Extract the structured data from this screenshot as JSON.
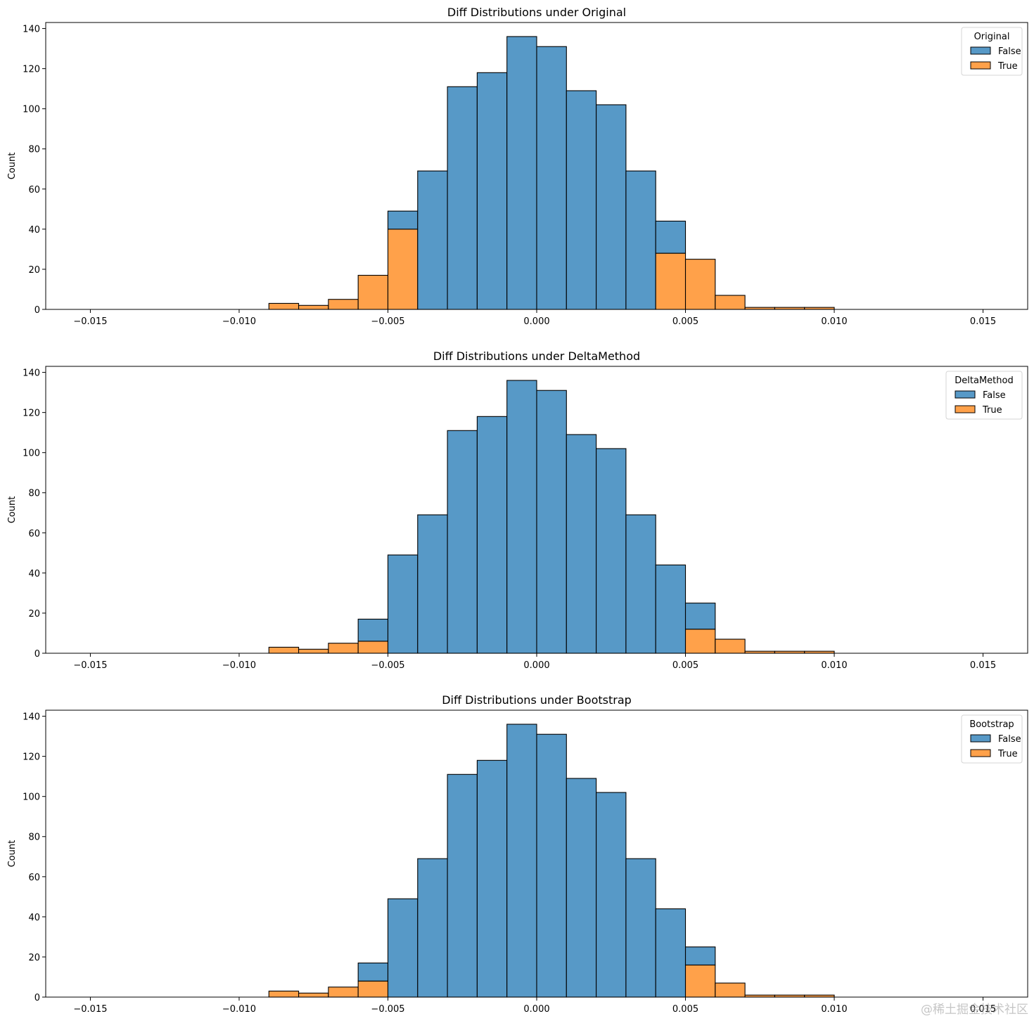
{
  "colors": {
    "false": "#5799c7",
    "true": "#ffa14a",
    "edge": "#000000"
  },
  "watermark": "@稀土掘金技术社区",
  "chart_data": [
    {
      "type": "bar",
      "stacked": true,
      "title": "Diff Distributions under Original",
      "xlabel": "",
      "ylabel": "Count",
      "xlim": [
        -0.0165,
        0.0165
      ],
      "ylim": [
        0,
        143
      ],
      "xticks": [
        -0.015,
        -0.01,
        -0.005,
        0.0,
        0.005,
        0.01,
        0.015
      ],
      "xtick_labels": [
        "−0.015",
        "−0.010",
        "−0.005",
        "0.000",
        "0.005",
        "0.010",
        "0.015"
      ],
      "yticks": [
        0,
        20,
        40,
        60,
        80,
        100,
        120,
        140
      ],
      "legend": {
        "title": "Original",
        "position": "top-right",
        "entries": [
          "False",
          "True"
        ]
      },
      "bin_edges": [
        -0.015,
        -0.014,
        -0.013,
        -0.012,
        -0.011,
        -0.01,
        -0.009,
        -0.008,
        -0.007,
        -0.006,
        -0.005,
        -0.004,
        -0.003,
        -0.002,
        -0.001,
        0.0,
        0.001,
        0.002,
        0.003,
        0.004,
        0.005,
        0.006,
        0.007,
        0.008,
        0.009,
        0.01,
        0.011,
        0.012,
        0.013,
        0.014,
        0.015
      ],
      "series": [
        {
          "name": "False",
          "values": [
            0,
            0,
            0,
            0,
            0,
            0,
            0,
            0,
            0,
            0,
            9,
            69,
            111,
            118,
            136,
            131,
            109,
            102,
            69,
            16,
            0,
            0,
            0,
            0,
            0,
            0,
            0,
            0,
            0,
            0
          ]
        },
        {
          "name": "True",
          "values": [
            0,
            0,
            0,
            0,
            0,
            0,
            3,
            2,
            5,
            17,
            40,
            0,
            0,
            0,
            0,
            0,
            0,
            0,
            0,
            28,
            25,
            7,
            1,
            1,
            1,
            0,
            0,
            0,
            0,
            0
          ]
        }
      ]
    },
    {
      "type": "bar",
      "stacked": true,
      "title": "Diff Distributions under DeltaMethod",
      "xlabel": "",
      "ylabel": "Count",
      "xlim": [
        -0.0165,
        0.0165
      ],
      "ylim": [
        0,
        143
      ],
      "xticks": [
        -0.015,
        -0.01,
        -0.005,
        0.0,
        0.005,
        0.01,
        0.015
      ],
      "xtick_labels": [
        "−0.015",
        "−0.010",
        "−0.005",
        "0.000",
        "0.005",
        "0.010",
        "0.015"
      ],
      "yticks": [
        0,
        20,
        40,
        60,
        80,
        100,
        120,
        140
      ],
      "legend": {
        "title": "DeltaMethod",
        "position": "top-right",
        "entries": [
          "False",
          "True"
        ]
      },
      "bin_edges": [
        -0.015,
        -0.014,
        -0.013,
        -0.012,
        -0.011,
        -0.01,
        -0.009,
        -0.008,
        -0.007,
        -0.006,
        -0.005,
        -0.004,
        -0.003,
        -0.002,
        -0.001,
        0.0,
        0.001,
        0.002,
        0.003,
        0.004,
        0.005,
        0.006,
        0.007,
        0.008,
        0.009,
        0.01,
        0.011,
        0.012,
        0.013,
        0.014,
        0.015
      ],
      "series": [
        {
          "name": "False",
          "values": [
            0,
            0,
            0,
            0,
            0,
            0,
            0,
            0,
            0,
            11,
            49,
            69,
            111,
            118,
            136,
            131,
            109,
            102,
            69,
            44,
            13,
            0,
            0,
            0,
            0,
            0,
            0,
            0,
            0,
            0
          ]
        },
        {
          "name": "True",
          "values": [
            0,
            0,
            0,
            0,
            0,
            0,
            3,
            2,
            5,
            6,
            0,
            0,
            0,
            0,
            0,
            0,
            0,
            0,
            0,
            0,
            12,
            7,
            1,
            1,
            1,
            0,
            0,
            0,
            0,
            0
          ]
        }
      ]
    },
    {
      "type": "bar",
      "stacked": true,
      "title": "Diff Distributions under Bootstrap",
      "xlabel": "",
      "ylabel": "Count",
      "xlim": [
        -0.0165,
        0.0165
      ],
      "ylim": [
        0,
        143
      ],
      "xticks": [
        -0.015,
        -0.01,
        -0.005,
        0.0,
        0.005,
        0.01,
        0.015
      ],
      "xtick_labels": [
        "−0.015",
        "−0.010",
        "−0.005",
        "0.000",
        "0.005",
        "0.010",
        "0.015"
      ],
      "yticks": [
        0,
        20,
        40,
        60,
        80,
        100,
        120,
        140
      ],
      "legend": {
        "title": "Bootstrap",
        "position": "top-right",
        "entries": [
          "False",
          "True"
        ]
      },
      "bin_edges": [
        -0.015,
        -0.014,
        -0.013,
        -0.012,
        -0.011,
        -0.01,
        -0.009,
        -0.008,
        -0.007,
        -0.006,
        -0.005,
        -0.004,
        -0.003,
        -0.002,
        -0.001,
        0.0,
        0.001,
        0.002,
        0.003,
        0.004,
        0.005,
        0.006,
        0.007,
        0.008,
        0.009,
        0.01,
        0.011,
        0.012,
        0.013,
        0.014,
        0.015
      ],
      "series": [
        {
          "name": "False",
          "values": [
            0,
            0,
            0,
            0,
            0,
            0,
            0,
            0,
            0,
            9,
            49,
            69,
            111,
            118,
            136,
            131,
            109,
            102,
            69,
            44,
            9,
            0,
            0,
            0,
            0,
            0,
            0,
            0,
            0,
            0
          ]
        },
        {
          "name": "True",
          "values": [
            0,
            0,
            0,
            0,
            0,
            0,
            3,
            2,
            5,
            8,
            0,
            0,
            0,
            0,
            0,
            0,
            0,
            0,
            0,
            0,
            16,
            7,
            1,
            1,
            1,
            0,
            0,
            0,
            0,
            0
          ]
        }
      ]
    }
  ]
}
